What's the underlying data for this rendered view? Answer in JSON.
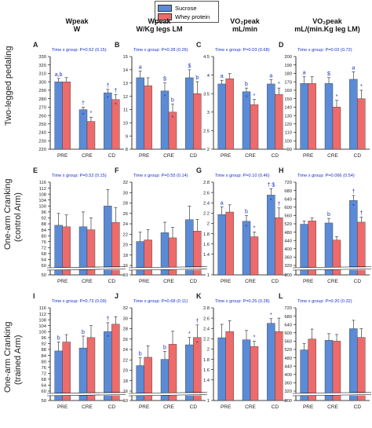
{
  "legend": {
    "sucrose": "Sucrose",
    "whey": "Whey protein"
  },
  "colors": {
    "sucrose": "#5b8bd6",
    "whey": "#ee6b6b",
    "annot": "#1a2fc8"
  },
  "columns": [
    {
      "l1": "Wpeak",
      "l2": "W"
    },
    {
      "l1": "Wpeak",
      "l2": "W/Kg legs LM"
    },
    {
      "l1": "VO₂peak",
      "l2": "mL/min"
    },
    {
      "l1": "VO₂peak",
      "l2": "mL/(min.Kg leg LM)"
    }
  ],
  "rows": [
    {
      "line1": "Two-legged pedaling",
      "line2": ""
    },
    {
      "line1": "One-arm Cranking",
      "line2": "(control Arm)"
    },
    {
      "line1": "One-arm Cranking",
      "line2": "(trained Arm)"
    }
  ],
  "chart_data": [
    {
      "type": "bar",
      "letter": "A",
      "stat": "Time x group: P=0.52 (0.15)",
      "categories": [
        "PRE",
        "CRE",
        "CD"
      ],
      "series": [
        {
          "name": "Sucrose",
          "values": [
            300,
            267,
            287
          ]
        },
        {
          "name": "Whey protein",
          "values": [
            300,
            253,
            279
          ]
        }
      ],
      "errors": [
        [
          4,
          3,
          4
        ],
        [
          5,
          5,
          6
        ]
      ],
      "ylim": [
        220,
        330
      ],
      "yticks": [
        220,
        230,
        240,
        250,
        260,
        270,
        280,
        290,
        300,
        310,
        320,
        330
      ],
      "annotations": [
        {
          "cat": 0,
          "s": 0,
          "text": "a,b",
          "pos": "above"
        },
        {
          "cat": 1,
          "s": 0,
          "text": "†",
          "pos": "above"
        },
        {
          "cat": 1,
          "s": 0,
          "text": "*",
          "pos": "bar"
        },
        {
          "cat": 1,
          "s": 1,
          "text": "*",
          "pos": "above"
        },
        {
          "cat": 2,
          "s": 0,
          "text": "†",
          "pos": "above"
        },
        {
          "cat": 2,
          "s": 0,
          "text": "*",
          "pos": "bar"
        },
        {
          "cat": 2,
          "s": 1,
          "text": "†",
          "pos": "above"
        },
        {
          "cat": 2,
          "s": 1,
          "text": "*",
          "pos": "bar"
        }
      ]
    },
    {
      "type": "bar",
      "letter": "B",
      "stat": "Time x group: P=0.28 (0.26)",
      "categories": [
        "PRE",
        "CRE",
        "CD"
      ],
      "series": [
        {
          "name": "Sucrose",
          "values": [
            13.4,
            12.4,
            13.4
          ]
        },
        {
          "name": "Whey protein",
          "values": [
            12.8,
            10.8,
            12.2
          ]
        }
      ],
      "errors": [
        [
          0.5,
          0.6,
          0.6
        ],
        [
          0.6,
          0.6,
          0.9
        ]
      ],
      "ylim": [
        8,
        15
      ],
      "yticks": [
        8,
        9,
        10,
        11,
        12,
        13,
        14,
        15
      ],
      "annotations": [
        {
          "cat": 0,
          "s": 0,
          "text": "a",
          "pos": "above"
        },
        {
          "cat": 1,
          "s": 0,
          "text": "$",
          "pos": "above"
        },
        {
          "cat": 1,
          "s": 0,
          "text": "*",
          "pos": "bar"
        },
        {
          "cat": 1,
          "s": 1,
          "text": "b",
          "pos": "above"
        },
        {
          "cat": 1,
          "s": 1,
          "text": "*",
          "pos": "bar"
        },
        {
          "cat": 2,
          "s": 0,
          "text": "$",
          "pos": "above"
        },
        {
          "cat": 2,
          "s": 1,
          "text": "b",
          "pos": "above"
        }
      ]
    },
    {
      "type": "bar",
      "letter": "C",
      "stat": "Time x group: P=0.03 (0.68)",
      "categories": [
        "PRE",
        "CRE",
        "CD"
      ],
      "series": [
        {
          "name": "Sucrose",
          "values": [
            3.76,
            3.55,
            3.76
          ]
        },
        {
          "name": "Whey protein",
          "values": [
            3.9,
            3.2,
            3.48
          ]
        }
      ],
      "errors": [
        [
          0.1,
          0.1,
          0.12
        ],
        [
          0.14,
          0.14,
          0.17
        ]
      ],
      "ylim": [
        2.0,
        4.5
      ],
      "yticks": [
        2.0,
        2.5,
        3.0,
        3.5,
        4.0,
        4.5
      ],
      "annotations": [
        {
          "cat": 0,
          "s": 0,
          "text": "a",
          "pos": "above"
        },
        {
          "cat": 1,
          "s": 0,
          "text": "b",
          "pos": "above"
        },
        {
          "cat": 1,
          "s": 0,
          "text": "*",
          "pos": "bar"
        },
        {
          "cat": 1,
          "s": 1,
          "text": "*",
          "pos": "above"
        },
        {
          "cat": 2,
          "s": 0,
          "text": "a",
          "pos": "above"
        },
        {
          "cat": 2,
          "s": 1,
          "text": "*",
          "pos": "above"
        }
      ]
    },
    {
      "type": "bar",
      "letter": "D",
      "stat": "Time x group: P=0.02 (0.72)",
      "categories": [
        "PRE",
        "CRE",
        "CD"
      ],
      "series": [
        {
          "name": "Sucrose",
          "values": [
            168,
            168,
            173
          ]
        },
        {
          "name": "Whey protein",
          "values": [
            168,
            140,
            150
          ]
        }
      ],
      "errors": [
        [
          8,
          7,
          9
        ],
        [
          8,
          8,
          10
        ]
      ],
      "ylim": [
        90,
        200
      ],
      "yticks": [
        90,
        100,
        110,
        120,
        130,
        140,
        150,
        160,
        170,
        180,
        190,
        200
      ],
      "annotations": [
        {
          "cat": 0,
          "s": 0,
          "text": "a",
          "pos": "above"
        },
        {
          "cat": 1,
          "s": 0,
          "text": "$",
          "pos": "above"
        },
        {
          "cat": 1,
          "s": 1,
          "text": "*",
          "pos": "above"
        },
        {
          "cat": 2,
          "s": 0,
          "text": "a",
          "pos": "above"
        },
        {
          "cat": 2,
          "s": 1,
          "text": "*",
          "pos": "above"
        }
      ]
    },
    {
      "type": "bar",
      "letter": "E",
      "stat": "Time x group: P=0.52 (0.15)",
      "categories": [
        "PRE",
        "CRE",
        "CD"
      ],
      "series": [
        {
          "name": "Sucrose",
          "values": [
            87,
            86,
            100
          ]
        },
        {
          "name": "Whey protein",
          "values": [
            86,
            84,
            89
          ]
        }
      ],
      "errors": [
        [
          8,
          10,
          11
        ],
        [
          8,
          8,
          10
        ]
      ],
      "ylim": [
        50,
        116
      ],
      "yticks": [
        50,
        60,
        64,
        68,
        72,
        76,
        80,
        84,
        88,
        92,
        96,
        100,
        104,
        108,
        112,
        116
      ],
      "annotations": []
    },
    {
      "type": "bar",
      "letter": "F",
      "stat": "Time x group: P=0.55 (0.14)",
      "categories": [
        "PRE",
        "CRE",
        "CD"
      ],
      "series": [
        {
          "name": "Sucrose",
          "values": [
            20.6,
            22.3,
            24.8
          ]
        },
        {
          "name": "Whey protein",
          "values": [
            20.9,
            21.3,
            22.6
          ]
        }
      ],
      "errors": [
        [
          1.8,
          2.0,
          2.6
        ],
        [
          2.0,
          2.0,
          2.2
        ]
      ],
      "ylim": [
        10,
        32
      ],
      "yticks": [
        10,
        16,
        18,
        20,
        22,
        24,
        26,
        28,
        30,
        32
      ],
      "annotations": []
    },
    {
      "type": "bar",
      "letter": "G",
      "stat": "Time x group: P=0.10 (0.46)",
      "categories": [
        "PRE",
        "CRE",
        "CD"
      ],
      "series": [
        {
          "name": "Sucrose",
          "values": [
            2.17,
            2.04,
            2.55
          ]
        },
        {
          "name": "Whey protein",
          "values": [
            2.22,
            1.74,
            2.11
          ]
        }
      ],
      "errors": [
        [
          0.15,
          0.11,
          0.12
        ],
        [
          0.14,
          0.09,
          0.19
        ]
      ],
      "ylim": [
        1.0,
        2.8
      ],
      "yticks": [
        1.0,
        1.4,
        1.6,
        1.8,
        2.0,
        2.2,
        2.4,
        2.6,
        2.8
      ],
      "annotations": [
        {
          "cat": 0,
          "s": 0,
          "text": "a",
          "pos": "above"
        },
        {
          "cat": 1,
          "s": 0,
          "text": "b",
          "pos": "above"
        },
        {
          "cat": 1,
          "s": 0,
          "text": "*",
          "pos": "bar"
        },
        {
          "cat": 1,
          "s": 1,
          "text": "*",
          "pos": "above"
        },
        {
          "cat": 2,
          "s": 0,
          "text": "† $",
          "pos": "above"
        },
        {
          "cat": 2,
          "s": 0,
          "text": "*",
          "pos": "bar"
        },
        {
          "cat": 2,
          "s": 1,
          "text": "†",
          "pos": "above"
        }
      ]
    },
    {
      "type": "bar",
      "letter": "H",
      "stat": "Time x group: P=0.066 (0.54)",
      "categories": [
        "PRE",
        "CRE",
        "CD"
      ],
      "series": [
        {
          "name": "Sucrose",
          "values": [
            518,
            524,
            632
          ]
        },
        {
          "name": "Whey protein",
          "values": [
            534,
            442,
            528
          ]
        }
      ],
      "errors": [
        [
          16,
          22,
          24
        ],
        [
          14,
          16,
          24
        ]
      ],
      "ylim": [
        200,
        720
      ],
      "yticks": [
        200,
        320,
        360,
        400,
        440,
        480,
        520,
        560,
        600,
        640,
        680,
        720
      ],
      "annotations": [
        {
          "cat": 1,
          "s": 0,
          "text": "b",
          "pos": "above"
        },
        {
          "cat": 2,
          "s": 0,
          "text": "†",
          "pos": "above"
        },
        {
          "cat": 2,
          "s": 0,
          "text": "*",
          "pos": "bar"
        },
        {
          "cat": 2,
          "s": 1,
          "text": "†",
          "pos": "above"
        }
      ]
    },
    {
      "type": "bar",
      "letter": "I",
      "stat": "Time x group: P=0.73 (0.09)",
      "categories": [
        "PRE",
        "CRE",
        "CD"
      ],
      "series": [
        {
          "name": "Sucrose",
          "values": [
            87,
            89,
            100
          ]
        },
        {
          "name": "Whey protein",
          "values": [
            93,
            96,
            105
          ]
        }
      ],
      "errors": [
        [
          6,
          8,
          6
        ],
        [
          5,
          8,
          5
        ]
      ],
      "ylim": [
        50,
        116
      ],
      "yticks": [
        50,
        60,
        64,
        68,
        72,
        76,
        80,
        84,
        88,
        92,
        96,
        100,
        104,
        108,
        112,
        116
      ],
      "annotations": [
        {
          "cat": 0,
          "s": 0,
          "text": "b",
          "pos": "above"
        },
        {
          "cat": 1,
          "s": 0,
          "text": "b",
          "pos": "above"
        },
        {
          "cat": 2,
          "s": 0,
          "text": "†",
          "pos": "above"
        },
        {
          "cat": 2,
          "s": 0,
          "text": "*",
          "pos": "bar"
        }
      ]
    },
    {
      "type": "bar",
      "letter": "J",
      "stat": "Time x group: P=0.68 (0.11)",
      "categories": [
        "PRE",
        "CRE",
        "CD"
      ],
      "series": [
        {
          "name": "Sucrose",
          "values": [
            20.9,
            22.1,
            24.9
          ]
        },
        {
          "name": "Whey protein",
          "values": [
            22.5,
            25.0,
            26.3
          ]
        }
      ],
      "errors": [
        [
          1.5,
          1.5,
          1.4
        ],
        [
          2.2,
          2.5,
          2.4
        ]
      ],
      "ylim": [
        10,
        32
      ],
      "yticks": [
        10,
        16,
        18,
        20,
        22,
        24,
        26,
        28,
        30,
        32
      ],
      "annotations": [
        {
          "cat": 0,
          "s": 0,
          "text": "b",
          "pos": "above"
        },
        {
          "cat": 1,
          "s": 0,
          "text": "b",
          "pos": "above"
        },
        {
          "cat": 2,
          "s": 0,
          "text": "*",
          "pos": "above"
        },
        {
          "cat": 2,
          "s": 1,
          "text": "†",
          "pos": "above"
        },
        {
          "cat": 2,
          "s": 1,
          "text": "*",
          "pos": "bar"
        }
      ]
    },
    {
      "type": "bar",
      "letter": "K",
      "stat": "Time x group: P=0.25 (0.28)",
      "categories": [
        "PRE",
        "CRE",
        "CD"
      ],
      "series": [
        {
          "name": "Sucrose",
          "values": [
            2.22,
            2.18,
            2.5
          ]
        },
        {
          "name": "Whey protein",
          "values": [
            2.34,
            2.05,
            2.34
          ]
        }
      ],
      "errors": [
        [
          0.26,
          0.18,
          0.09
        ],
        [
          0.21,
          0.1,
          0.26
        ]
      ],
      "ylim": [
        1.0,
        2.8
      ],
      "yticks": [
        1.0,
        1.4,
        1.6,
        1.8,
        2.0,
        2.2,
        2.4,
        2.6,
        2.8
      ],
      "annotations": [
        {
          "cat": 1,
          "s": 1,
          "text": "*",
          "pos": "above"
        },
        {
          "cat": 2,
          "s": 0,
          "text": "*",
          "pos": "above"
        }
      ]
    },
    {
      "type": "bar",
      "letter": "L",
      "stat": "Time x group: P=0.20 (0.32)",
      "categories": [
        "PRE",
        "CRE",
        "CD"
      ],
      "series": [
        {
          "name": "Sucrose",
          "values": [
            518,
            564,
            620
          ]
        },
        {
          "name": "Whey protein",
          "values": [
            570,
            560,
            578
          ]
        }
      ],
      "errors": [
        [
          30,
          32,
          40
        ],
        [
          48,
          32,
          42
        ]
      ],
      "ylim": [
        200,
        720
      ],
      "yticks": [
        200,
        320,
        360,
        400,
        440,
        480,
        520,
        560,
        600,
        640,
        680,
        720
      ],
      "annotations": []
    }
  ]
}
